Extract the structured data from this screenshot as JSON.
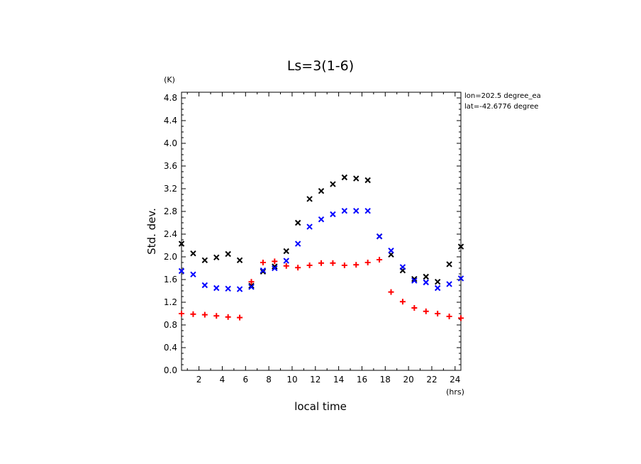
{
  "chart_data": {
    "type": "scatter",
    "title": "Ls=3(1-6)",
    "xlabel": "local time",
    "ylabel": "Std. dev.",
    "x_unit": "(hrs)",
    "y_unit": "(K)",
    "xlim": [
      0.5,
      24.5
    ],
    "ylim": [
      0.0,
      4.9
    ],
    "xticks": [
      2,
      4,
      6,
      8,
      10,
      12,
      14,
      16,
      18,
      20,
      22,
      24
    ],
    "yticks": [
      0.0,
      0.4,
      0.8,
      1.2,
      1.6,
      2.0,
      2.4,
      2.8,
      3.2,
      3.6,
      4.0,
      4.4,
      4.8
    ],
    "annotations": [
      "lon=202.5 degree_ea",
      "lat=-42.6776 degree"
    ],
    "grid": false,
    "x": [
      0.5,
      1.5,
      2.5,
      3.5,
      4.5,
      5.5,
      6.5,
      7.5,
      8.5,
      9.5,
      10.5,
      11.5,
      12.5,
      13.5,
      14.5,
      15.5,
      16.5,
      17.5,
      18.5,
      19.5,
      20.5,
      21.5,
      22.5,
      23.5,
      24.5
    ],
    "series": [
      {
        "marker": "x",
        "color": "#000000",
        "values": [
          2.23,
          2.06,
          1.94,
          1.99,
          2.05,
          1.94,
          1.49,
          1.74,
          1.83,
          2.1,
          2.6,
          3.02,
          3.16,
          3.28,
          3.4,
          3.38,
          3.35,
          2.36,
          2.04,
          1.76,
          1.61,
          1.65,
          1.56,
          1.87,
          2.18
        ]
      },
      {
        "marker": "x",
        "color": "#0000ff",
        "values": [
          1.75,
          1.69,
          1.5,
          1.45,
          1.44,
          1.43,
          1.47,
          1.76,
          1.8,
          1.93,
          2.23,
          2.53,
          2.66,
          2.75,
          2.81,
          2.81,
          2.81,
          2.36,
          2.11,
          1.82,
          1.58,
          1.55,
          1.45,
          1.52,
          1.62
        ]
      },
      {
        "marker": "+",
        "color": "#ff0000",
        "values": [
          1.0,
          0.99,
          0.98,
          0.96,
          0.94,
          0.93,
          1.56,
          1.9,
          1.92,
          1.84,
          1.81,
          1.85,
          1.89,
          1.89,
          1.85,
          1.86,
          1.9,
          1.95,
          1.38,
          1.21,
          1.1,
          1.04,
          1.0,
          0.95,
          0.92
        ]
      }
    ]
  }
}
